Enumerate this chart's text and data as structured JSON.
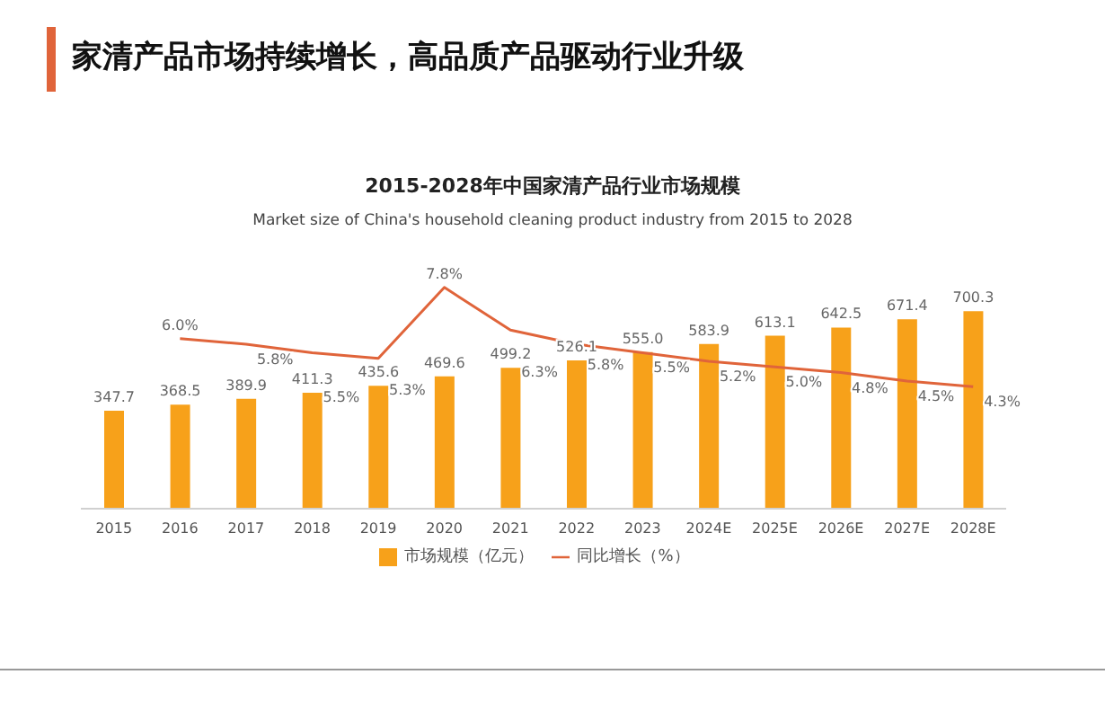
{
  "chart_data": {
    "type": "bar",
    "title": "家清产品市场持续增长，高品质产品驱动行业升级",
    "subtitle": "2015-2028年中国家清产品行业市场规模",
    "annotations": [
      "Market size of China's household cleaning product industry from 2015 to 2028"
    ],
    "categories": [
      "2015",
      "2016",
      "2017",
      "2018",
      "2019",
      "2020",
      "2021",
      "2022",
      "2023",
      "2024E",
      "2025E",
      "2026E",
      "2027E",
      "2028E"
    ],
    "series": [
      {
        "name": "市场规模（亿元）",
        "color": "#f7a11a",
        "values": [
          347.7,
          368.5,
          389.9,
          411.3,
          435.6,
          469.6,
          499.2,
          526.1,
          555.0,
          583.9,
          613.1,
          642.5,
          671.4,
          700.3
        ],
        "value_labels": [
          "347.7",
          "368.5",
          "389.9",
          "411.3",
          "435.6",
          "469.6",
          "499.2",
          "526.1",
          "555.0",
          "583.9",
          "613.1",
          "642.5",
          "671.4",
          "700.3"
        ]
      },
      {
        "name": "同比增长（%）",
        "type": "line",
        "axis": "y2",
        "color": "#e0643a",
        "values": [
          null,
          6.0,
          5.8,
          5.5,
          5.3,
          7.8,
          6.3,
          5.8,
          5.5,
          5.2,
          5.0,
          4.8,
          4.5,
          4.3
        ],
        "value_labels": [
          null,
          "6.0%",
          "5.8%",
          "5.5%",
          "5.3%",
          "7.8%",
          "6.3%",
          "5.8%",
          "5.5%",
          "5.2%",
          "5.0%",
          "4.8%",
          "4.5%",
          "4.3%"
        ]
      }
    ],
    "legend": "bottom",
    "marker": "none"
  }
}
